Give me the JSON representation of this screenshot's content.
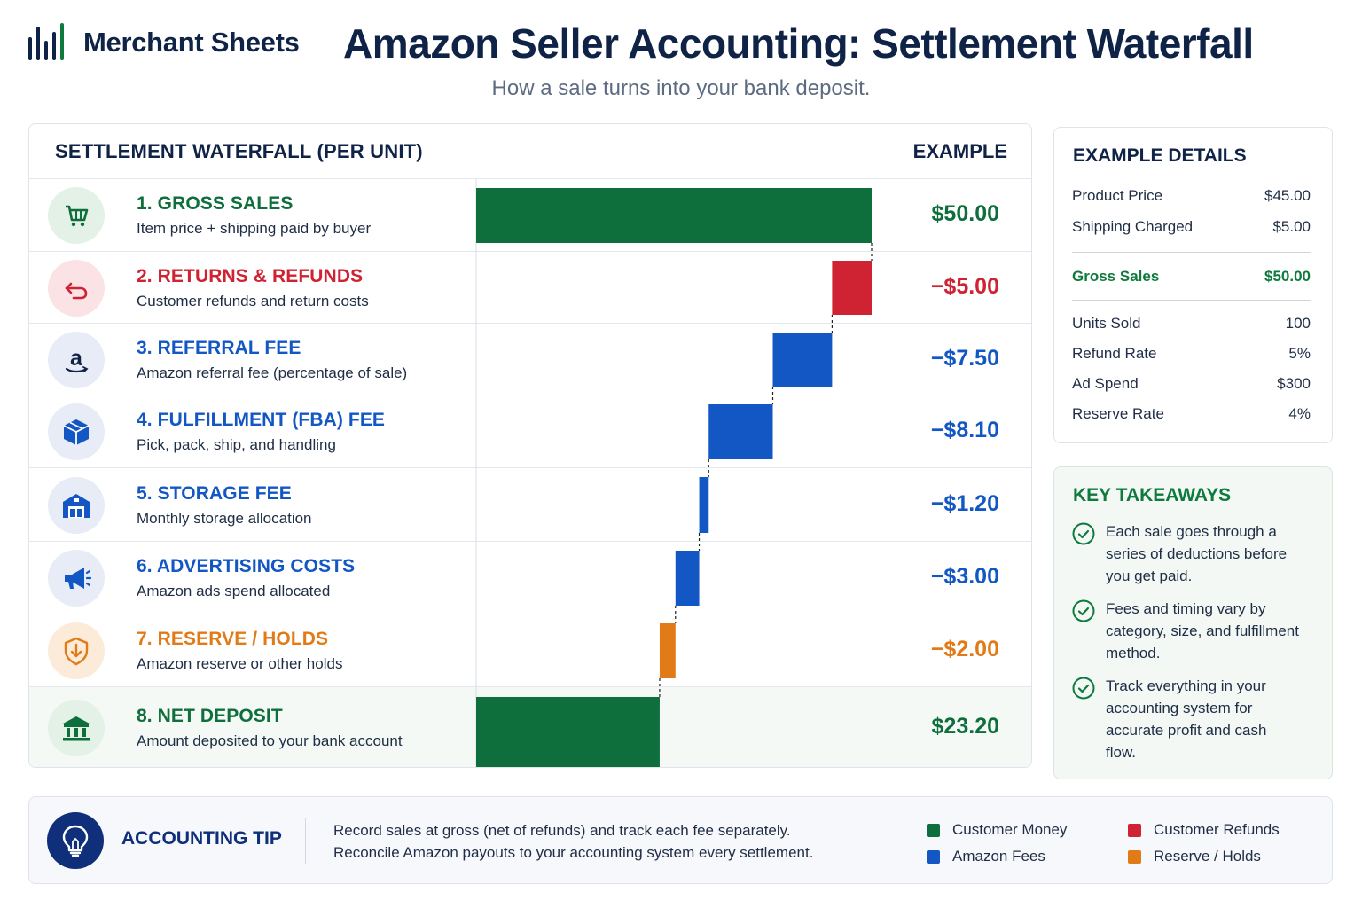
{
  "brand": {
    "name": "Merchant Sheets",
    "logo_icon": "bar-chart-logo-icon"
  },
  "title": "Amazon Seller Accounting: Settlement Waterfall",
  "subtitle": "How a sale turns into your bank deposit.",
  "main": {
    "header_left": "SETTLEMENT WATERFALL (PER UNIT)",
    "header_right": "EXAMPLE"
  },
  "steps": [
    {
      "title": "1. GROSS SALES",
      "subtitle": "Item price + shipping paid by buyer",
      "value_label": "$50.00",
      "color": "#0e6e3c",
      "icon": "shopping-cart-icon"
    },
    {
      "title": "2. RETURNS & REFUNDS",
      "subtitle": "Customer refunds and return costs",
      "value_label": "−$5.00",
      "color": "#cf2333",
      "icon": "return-arrow-icon"
    },
    {
      "title": "3. REFERRAL FEE",
      "subtitle": "Amazon referral fee (percentage of sale)",
      "value_label": "−$7.50",
      "color": "#1257c4",
      "icon": "amazon-logo-icon"
    },
    {
      "title": "4. FULFILLMENT (FBA) FEE",
      "subtitle": "Pick, pack, ship, and handling",
      "value_label": "−$8.10",
      "color": "#1257c4",
      "icon": "package-box-icon"
    },
    {
      "title": "5. STORAGE FEE",
      "subtitle": "Monthly storage allocation",
      "value_label": "−$1.20",
      "color": "#1257c4",
      "icon": "warehouse-icon"
    },
    {
      "title": "6. ADVERTISING COSTS",
      "subtitle": "Amazon ads spend allocated",
      "value_label": "−$3.00",
      "color": "#1257c4",
      "icon": "megaphone-icon"
    },
    {
      "title": "7. RESERVE / HOLDS",
      "subtitle": "Amazon reserve or other holds",
      "value_label": "−$2.00",
      "color": "#e07b17",
      "icon": "shield-icon"
    },
    {
      "title": "8. NET DEPOSIT",
      "subtitle": "Amount deposited to your bank account",
      "value_label": "$23.20",
      "color": "#0e6e3c",
      "icon": "bank-icon"
    }
  ],
  "chart_data": {
    "type": "waterfall",
    "categories": [
      "1. GROSS SALES",
      "2. RETURNS & REFUNDS",
      "3. REFERRAL FEE",
      "4. FULFILLMENT (FBA) FEE",
      "5. STORAGE FEE",
      "6. ADVERTISING COSTS",
      "7. RESERVE / HOLDS",
      "8. NET DEPOSIT"
    ],
    "values": [
      50.0,
      -5.0,
      -7.5,
      -8.1,
      -1.2,
      -3.0,
      -2.0,
      23.2
    ],
    "kinds": [
      "total",
      "delta",
      "delta",
      "delta",
      "delta",
      "delta",
      "delta",
      "total"
    ],
    "colors": [
      "#0e6e3c",
      "#cf2333",
      "#1257c4",
      "#1257c4",
      "#1257c4",
      "#1257c4",
      "#e07b17",
      "#0e6e3c"
    ],
    "xlim": [
      0,
      50
    ]
  },
  "example_details": {
    "heading": "EXAMPLE DETAILS",
    "rows": [
      {
        "label": "Product Price",
        "value": "$45.00"
      },
      {
        "label": "Shipping Charged",
        "value": "$5.00"
      },
      {
        "label": "Gross Sales",
        "value": "$50.00"
      },
      {
        "label": "Units Sold",
        "value": "100"
      },
      {
        "label": "Refund Rate",
        "value": "5%"
      },
      {
        "label": "Ad Spend",
        "value": "$300"
      },
      {
        "label": "Reserve Rate",
        "value": "4%"
      }
    ]
  },
  "takeaways": {
    "heading": "KEY TAKEAWAYS",
    "items": [
      "Each sale goes through a series of deductions before you get paid.",
      "Fees and timing vary by category, size, and fulfillment method.",
      "Track everything in your accounting system for accurate profit and cash flow."
    ],
    "icon": "check-circle-icon"
  },
  "tip": {
    "label": "ACCOUNTING TIP",
    "icon": "lightbulb-icon",
    "lines": [
      "Record sales at gross (net of refunds) and track each fee separately.",
      "Reconcile Amazon payouts to your accounting system every settlement."
    ]
  },
  "legend": [
    {
      "label": "Customer Money",
      "color": "#0e6e3c"
    },
    {
      "label": "Customer Refunds",
      "color": "#cf2333"
    },
    {
      "label": "Amazon Fees",
      "color": "#1257c4"
    },
    {
      "label": "Reserve / Holds",
      "color": "#e07b17"
    }
  ]
}
